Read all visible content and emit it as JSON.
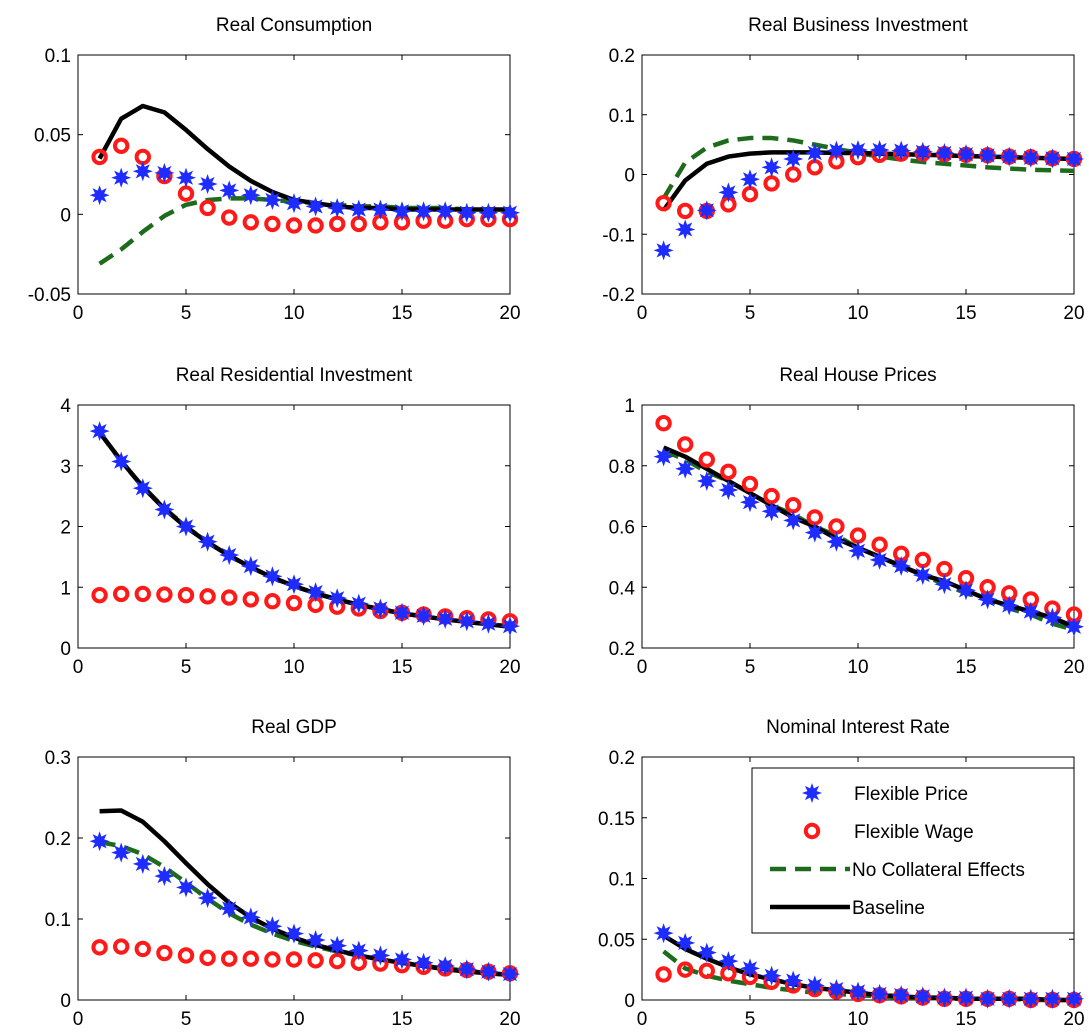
{
  "figure": {
    "colors": {
      "flexible_price": "#1f2cff",
      "flexible_wage": "#ff1a1a",
      "no_collateral": "#1e6b1e",
      "baseline": "#000000"
    }
  },
  "legend": {
    "items": [
      {
        "label": "Flexible Price",
        "key": "flexible_price",
        "marker": "star"
      },
      {
        "label": "Flexible Wage",
        "key": "flexible_wage",
        "marker": "circle"
      },
      {
        "label": "No Collateral Effects",
        "key": "no_collateral",
        "marker": "dashed-line"
      },
      {
        "label": "Baseline",
        "key": "baseline",
        "marker": "solid-line"
      }
    ]
  },
  "chart_data": [
    {
      "type": "line",
      "title": "Real Consumption",
      "xlim": [
        0,
        20
      ],
      "ylim": [
        -0.05,
        0.1
      ],
      "xticks": [
        0,
        5,
        10,
        15,
        20
      ],
      "yticks": [
        -0.05,
        0,
        0.05,
        0.1
      ],
      "yticklabels": [
        "-0.05",
        "0",
        "0.05",
        "0.1"
      ],
      "x": [
        1,
        2,
        3,
        4,
        5,
        6,
        7,
        8,
        9,
        10,
        11,
        12,
        13,
        14,
        15,
        16,
        17,
        18,
        19,
        20
      ],
      "series": [
        {
          "key": "flexible_price",
          "values": [
            0.012,
            0.023,
            0.027,
            0.026,
            0.023,
            0.019,
            0.015,
            0.012,
            0.009,
            0.007,
            0.005,
            0.004,
            0.003,
            0.003,
            0.002,
            0.002,
            0.002,
            0.001,
            0.001,
            0.001
          ]
        },
        {
          "key": "flexible_wage",
          "values": [
            0.036,
            0.043,
            0.036,
            0.024,
            0.013,
            0.004,
            -0.002,
            -0.005,
            -0.006,
            -0.007,
            -0.007,
            -0.006,
            -0.006,
            -0.005,
            -0.005,
            -0.004,
            -0.004,
            -0.003,
            -0.003,
            -0.003
          ]
        },
        {
          "key": "no_collateral",
          "values": [
            -0.031,
            -0.022,
            -0.011,
            -0.001,
            0.006,
            0.009,
            0.01,
            0.01,
            0.009,
            0.008,
            0.007,
            0.006,
            0.005,
            0.005,
            0.004,
            0.004,
            0.004,
            0.003,
            0.003,
            0.003
          ]
        },
        {
          "key": "baseline",
          "values": [
            0.035,
            0.06,
            0.068,
            0.064,
            0.053,
            0.041,
            0.03,
            0.021,
            0.014,
            0.009,
            0.007,
            0.005,
            0.004,
            0.004,
            0.003,
            0.003,
            0.003,
            0.003,
            0.003,
            0.003
          ]
        }
      ]
    },
    {
      "type": "line",
      "title": "Real Business Investment",
      "xlim": [
        0,
        20
      ],
      "ylim": [
        -0.2,
        0.2
      ],
      "xticks": [
        0,
        5,
        10,
        15,
        20
      ],
      "yticks": [
        -0.2,
        -0.1,
        0,
        0.1,
        0.2
      ],
      "yticklabels": [
        "-0.2",
        "-0.1",
        "0",
        "0.1",
        "0.2"
      ],
      "x": [
        1,
        2,
        3,
        4,
        5,
        6,
        7,
        8,
        9,
        10,
        11,
        12,
        13,
        14,
        15,
        16,
        17,
        18,
        19,
        20
      ],
      "series": [
        {
          "key": "flexible_price",
          "values": [
            -0.127,
            -0.092,
            -0.06,
            -0.03,
            -0.008,
            0.012,
            0.026,
            0.036,
            0.04,
            0.041,
            0.041,
            0.04,
            0.038,
            0.036,
            0.034,
            0.032,
            0.03,
            0.028,
            0.027,
            0.026
          ]
        },
        {
          "key": "flexible_wage",
          "values": [
            -0.048,
            -0.061,
            -0.061,
            -0.05,
            -0.033,
            -0.015,
            0.0,
            0.012,
            0.022,
            0.029,
            0.033,
            0.035,
            0.035,
            0.034,
            0.033,
            0.032,
            0.03,
            0.029,
            0.027,
            0.026
          ]
        },
        {
          "key": "no_collateral",
          "values": [
            -0.04,
            0.02,
            0.045,
            0.057,
            0.061,
            0.061,
            0.057,
            0.05,
            0.043,
            0.036,
            0.03,
            0.025,
            0.021,
            0.018,
            0.015,
            0.012,
            0.01,
            0.008,
            0.007,
            0.006
          ]
        },
        {
          "key": "baseline",
          "values": [
            -0.06,
            -0.01,
            0.018,
            0.03,
            0.035,
            0.037,
            0.037,
            0.037,
            0.036,
            0.036,
            0.035,
            0.034,
            0.033,
            0.032,
            0.031,
            0.03,
            0.029,
            0.028,
            0.027,
            0.026
          ]
        }
      ]
    },
    {
      "type": "line",
      "title": "Real Residential Investment",
      "xlim": [
        0,
        20
      ],
      "ylim": [
        0,
        4
      ],
      "xticks": [
        0,
        5,
        10,
        15,
        20
      ],
      "yticks": [
        0,
        1,
        2,
        3,
        4
      ],
      "yticklabels": [
        "0",
        "1",
        "2",
        "3",
        "4"
      ],
      "x": [
        1,
        2,
        3,
        4,
        5,
        6,
        7,
        8,
        9,
        10,
        11,
        12,
        13,
        14,
        15,
        16,
        17,
        18,
        19,
        20
      ],
      "series": [
        {
          "key": "flexible_price",
          "values": [
            3.57,
            3.07,
            2.63,
            2.28,
            2.0,
            1.75,
            1.53,
            1.35,
            1.18,
            1.05,
            0.92,
            0.82,
            0.73,
            0.65,
            0.58,
            0.53,
            0.48,
            0.44,
            0.4,
            0.36
          ]
        },
        {
          "key": "flexible_wage",
          "values": [
            0.87,
            0.89,
            0.89,
            0.88,
            0.87,
            0.85,
            0.83,
            0.8,
            0.77,
            0.74,
            0.71,
            0.68,
            0.65,
            0.61,
            0.58,
            0.55,
            0.52,
            0.49,
            0.47,
            0.44
          ]
        },
        {
          "key": "no_collateral",
          "values": [
            3.55,
            3.07,
            2.66,
            2.3,
            2.0,
            1.74,
            1.52,
            1.33,
            1.16,
            1.02,
            0.9,
            0.8,
            0.71,
            0.64,
            0.57,
            0.52,
            0.47,
            0.43,
            0.39,
            0.36
          ]
        },
        {
          "key": "baseline",
          "values": [
            3.55,
            3.08,
            2.65,
            2.29,
            1.99,
            1.74,
            1.52,
            1.33,
            1.16,
            1.02,
            0.9,
            0.8,
            0.71,
            0.64,
            0.57,
            0.52,
            0.47,
            0.43,
            0.39,
            0.35
          ]
        }
      ]
    },
    {
      "type": "line",
      "title": "Real House Prices",
      "xlim": [
        0,
        20
      ],
      "ylim": [
        0.2,
        1
      ],
      "xticks": [
        0,
        5,
        10,
        15,
        20
      ],
      "yticks": [
        0.2,
        0.4,
        0.6,
        0.8,
        1
      ],
      "yticklabels": [
        "0.2",
        "0.4",
        "0.6",
        "0.8",
        "1"
      ],
      "x": [
        1,
        2,
        3,
        4,
        5,
        6,
        7,
        8,
        9,
        10,
        11,
        12,
        13,
        14,
        15,
        16,
        17,
        18,
        19,
        20
      ],
      "series": [
        {
          "key": "flexible_price",
          "values": [
            0.83,
            0.79,
            0.75,
            0.72,
            0.68,
            0.65,
            0.62,
            0.58,
            0.55,
            0.52,
            0.49,
            0.47,
            0.44,
            0.41,
            0.39,
            0.36,
            0.34,
            0.32,
            0.3,
            0.27
          ]
        },
        {
          "key": "flexible_wage",
          "values": [
            0.94,
            0.87,
            0.82,
            0.78,
            0.74,
            0.7,
            0.67,
            0.63,
            0.6,
            0.57,
            0.54,
            0.51,
            0.49,
            0.46,
            0.43,
            0.4,
            0.38,
            0.36,
            0.33,
            0.31
          ]
        },
        {
          "key": "no_collateral",
          "values": [
            0.85,
            0.82,
            0.78,
            0.75,
            0.71,
            0.67,
            0.64,
            0.6,
            0.57,
            0.53,
            0.5,
            0.47,
            0.44,
            0.41,
            0.38,
            0.36,
            0.33,
            0.31,
            0.28,
            0.26
          ]
        },
        {
          "key": "baseline",
          "values": [
            0.86,
            0.83,
            0.79,
            0.75,
            0.71,
            0.67,
            0.63,
            0.6,
            0.56,
            0.53,
            0.5,
            0.47,
            0.44,
            0.42,
            0.39,
            0.36,
            0.34,
            0.32,
            0.3,
            0.27
          ]
        }
      ]
    },
    {
      "type": "line",
      "title": "Real GDP",
      "xlim": [
        0,
        20
      ],
      "ylim": [
        0,
        0.3
      ],
      "xticks": [
        0,
        5,
        10,
        15,
        20
      ],
      "yticks": [
        0,
        0.1,
        0.2,
        0.3
      ],
      "yticklabels": [
        "0",
        "0.1",
        "0.2",
        "0.3"
      ],
      "x": [
        1,
        2,
        3,
        4,
        5,
        6,
        7,
        8,
        9,
        10,
        11,
        12,
        13,
        14,
        15,
        16,
        17,
        18,
        19,
        20
      ],
      "series": [
        {
          "key": "flexible_price",
          "values": [
            0.196,
            0.182,
            0.168,
            0.153,
            0.139,
            0.126,
            0.113,
            0.102,
            0.091,
            0.082,
            0.074,
            0.067,
            0.061,
            0.055,
            0.05,
            0.046,
            0.042,
            0.038,
            0.035,
            0.032
          ]
        },
        {
          "key": "flexible_wage",
          "values": [
            0.065,
            0.066,
            0.063,
            0.058,
            0.055,
            0.052,
            0.051,
            0.051,
            0.05,
            0.05,
            0.049,
            0.048,
            0.046,
            0.045,
            0.043,
            0.041,
            0.039,
            0.037,
            0.035,
            0.033
          ]
        },
        {
          "key": "no_collateral",
          "values": [
            0.195,
            0.19,
            0.18,
            0.164,
            0.145,
            0.125,
            0.107,
            0.093,
            0.082,
            0.073,
            0.066,
            0.06,
            0.055,
            0.05,
            0.046,
            0.042,
            0.039,
            0.036,
            0.033,
            0.031
          ]
        },
        {
          "key": "baseline",
          "values": [
            0.233,
            0.234,
            0.22,
            0.196,
            0.169,
            0.143,
            0.12,
            0.102,
            0.088,
            0.077,
            0.068,
            0.061,
            0.055,
            0.05,
            0.046,
            0.042,
            0.038,
            0.035,
            0.033,
            0.031
          ]
        }
      ]
    },
    {
      "type": "line",
      "title": "Nominal Interest Rate",
      "xlim": [
        0,
        20
      ],
      "ylim": [
        0,
        0.2
      ],
      "xticks": [
        0,
        5,
        10,
        15,
        20
      ],
      "yticks": [
        0,
        0.05,
        0.1,
        0.15,
        0.2
      ],
      "yticklabels": [
        "0",
        "0.05",
        "0.1",
        "0.15",
        "0.2"
      ],
      "legend": "upper-right",
      "x": [
        1,
        2,
        3,
        4,
        5,
        6,
        7,
        8,
        9,
        10,
        11,
        12,
        13,
        14,
        15,
        16,
        17,
        18,
        19,
        20
      ],
      "series": [
        {
          "key": "flexible_price",
          "values": [
            0.055,
            0.047,
            0.039,
            0.032,
            0.026,
            0.02,
            0.016,
            0.012,
            0.009,
            0.007,
            0.005,
            0.004,
            0.003,
            0.002,
            0.002,
            0.001,
            0.001,
            0.001,
            0.001,
            0.001
          ]
        },
        {
          "key": "flexible_wage",
          "values": [
            0.021,
            0.025,
            0.024,
            0.022,
            0.019,
            0.015,
            0.012,
            0.009,
            0.007,
            0.005,
            0.004,
            0.003,
            0.002,
            0.001,
            0.001,
            0.001,
            0.001,
            0.0,
            0.0,
            0.0
          ]
        },
        {
          "key": "no_collateral",
          "values": [
            0.04,
            0.026,
            0.02,
            0.016,
            0.013,
            0.01,
            0.008,
            0.006,
            0.005,
            0.004,
            0.003,
            0.002,
            0.002,
            0.001,
            0.001,
            0.001,
            0.001,
            0.0,
            0.0,
            0.0
          ]
        },
        {
          "key": "baseline",
          "values": [
            0.053,
            0.042,
            0.034,
            0.027,
            0.021,
            0.017,
            0.013,
            0.01,
            0.008,
            0.006,
            0.004,
            0.003,
            0.002,
            0.002,
            0.001,
            0.001,
            0.001,
            0.001,
            0.0,
            0.0
          ]
        }
      ]
    }
  ]
}
